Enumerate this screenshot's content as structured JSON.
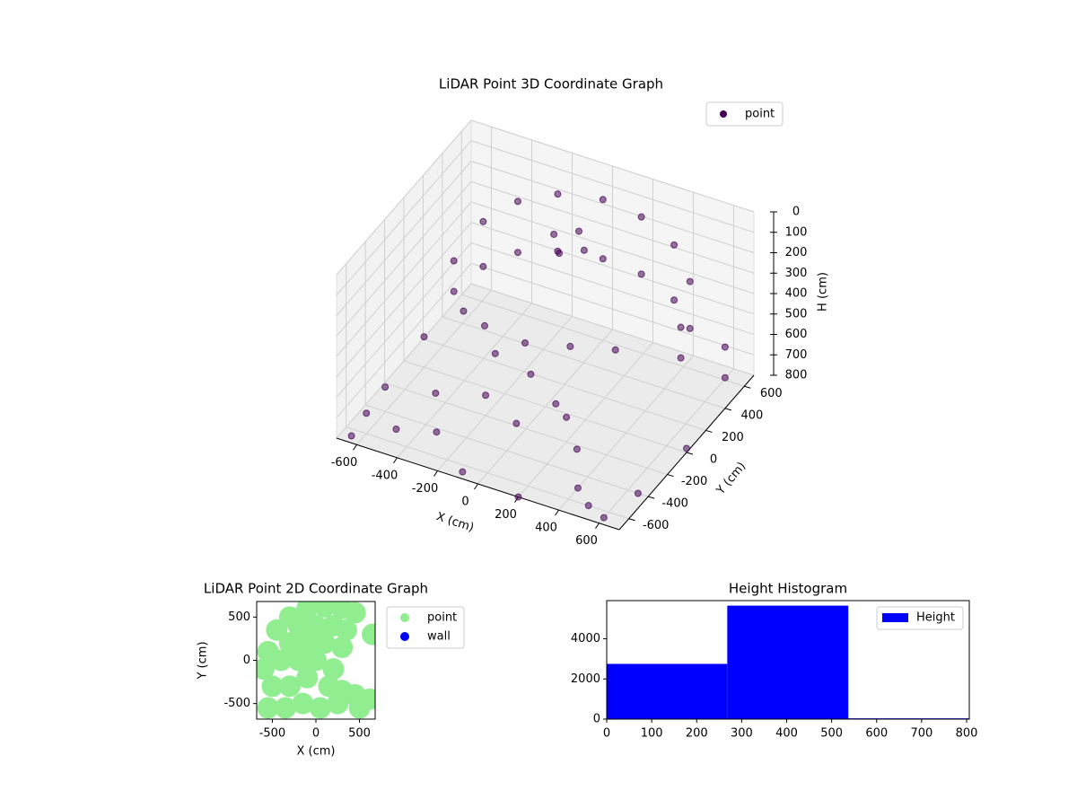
{
  "chart_data": [
    {
      "type": "scatter3d",
      "title": "LiDAR Point 3D Coordinate Graph",
      "xlabel": "X (cm)",
      "ylabel": "Y (cm)",
      "zlabel": "H (cm)",
      "xlim": [
        -700,
        700
      ],
      "ylim": [
        -700,
        700
      ],
      "zlim": [
        800,
        0
      ],
      "xticks": [
        -600,
        -400,
        -200,
        0,
        200,
        400,
        600
      ],
      "yticks": [
        -600,
        -400,
        -200,
        0,
        200,
        400,
        600
      ],
      "zticks": [
        0,
        100,
        200,
        300,
        400,
        500,
        600,
        700,
        800
      ],
      "grid": true,
      "legend": "upper right",
      "series": [
        {
          "name": "point",
          "color": "#440154",
          "x": [
            -500,
            -450,
            -350,
            -200,
            0,
            200,
            400,
            550,
            600,
            -500,
            -450,
            -350,
            -200,
            0,
            200,
            400,
            550,
            600,
            -100,
            0,
            -50,
            50,
            -300,
            -100,
            100,
            300,
            -200,
            0,
            -600,
            -650,
            -500,
            -400,
            -300,
            -200,
            0,
            100,
            200,
            300,
            400,
            500,
            600,
            -100,
            200,
            650,
            -600,
            -500,
            700,
            700,
            700,
            -650
          ],
          "y": [
            100,
            300,
            450,
            550,
            600,
            580,
            500,
            350,
            150,
            100,
            300,
            450,
            550,
            600,
            580,
            500,
            350,
            150,
            300,
            350,
            250,
            300,
            0,
            0,
            50,
            100,
            -100,
            -150,
            -600,
            -300,
            -500,
            -300,
            -500,
            -200,
            -300,
            -100,
            -200,
            -300,
            -500,
            -600,
            -650,
            -650,
            -700,
            -400,
            0,
            200,
            400,
            400,
            0,
            -650
          ],
          "z": [
            300,
            200,
            150,
            120,
            110,
            120,
            150,
            200,
            300,
            450,
            420,
            400,
            400,
            400,
            400,
            420,
            430,
            450,
            150,
            130,
            200,
            180,
            500,
            520,
            500,
            480,
            550,
            560,
            700,
            750,
            800,
            700,
            750,
            700,
            720,
            700,
            680,
            750,
            800,
            800,
            800,
            800,
            800,
            800,
            650,
            600,
            500,
            650,
            780,
            800
          ]
        }
      ]
    },
    {
      "type": "scatter",
      "title": "LiDAR Point 2D Coordinate Graph",
      "xlabel": "X (cm)",
      "ylabel": "Y (cm)",
      "xlim": [
        -680,
        680
      ],
      "ylim": [
        -680,
        680
      ],
      "xticks": [
        -500,
        0,
        500
      ],
      "yticks": [
        -500,
        0,
        500
      ],
      "legend": "upper right",
      "series": [
        {
          "name": "point",
          "color": "#90ee90",
          "x": [
            -100,
            100,
            300,
            450,
            -300,
            -450,
            -550,
            -600,
            -200,
            0,
            200,
            350,
            -300,
            -100,
            100,
            300,
            -400,
            -200,
            0,
            200,
            -500,
            -300,
            -100,
            150,
            300,
            450,
            -550,
            -350,
            -150,
            50,
            250,
            500,
            620,
            650
          ],
          "y": [
            600,
            620,
            600,
            550,
            500,
            350,
            100,
            -100,
            400,
            400,
            400,
            350,
            200,
            200,
            200,
            150,
            0,
            0,
            0,
            -100,
            -300,
            -300,
            -200,
            -300,
            -350,
            -400,
            -550,
            -550,
            -500,
            -550,
            -500,
            -550,
            -450,
            300
          ]
        },
        {
          "name": "wall",
          "color": "#0000ff",
          "x": [],
          "y": []
        }
      ]
    },
    {
      "type": "histogram",
      "title": "Height Histogram",
      "bins": [
        0,
        268,
        537,
        806
      ],
      "xlim": [
        0,
        806
      ],
      "ylim": [
        0,
        5900
      ],
      "xticks": [
        0,
        100,
        200,
        300,
        400,
        500,
        600,
        700,
        800
      ],
      "yticks": [
        0,
        2000,
        4000
      ],
      "legend": "upper right",
      "series": [
        {
          "name": "Height",
          "color": "#0000ff",
          "values": [
            2750,
            5650,
            40
          ]
        }
      ]
    }
  ]
}
